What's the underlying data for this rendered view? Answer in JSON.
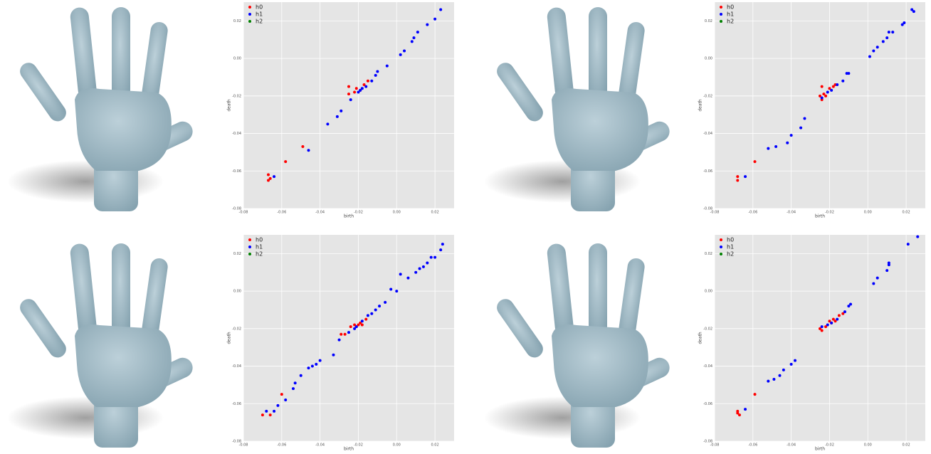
{
  "chart_data": [
    {
      "type": "scatter",
      "x_label": "birth",
      "y_label": "death",
      "xlim": [
        -0.08,
        0.03
      ],
      "ylim": [
        -0.08,
        0.03
      ],
      "xticks": [
        -0.08,
        -0.06,
        -0.04,
        -0.02,
        {
          "value": 0,
          "label": "0.00"
        },
        0.02
      ],
      "yticks": [
        -0.08,
        -0.06,
        -0.04,
        -0.02,
        {
          "value": 0,
          "label": "0.00"
        },
        0.02
      ],
      "grid": true,
      "legend": "upper left",
      "series": [
        {
          "name": "h0",
          "color": "#ff0000",
          "x": [
            -0.067,
            -0.066,
            -0.067,
            -0.058,
            -0.049,
            -0.025,
            -0.025,
            -0.022,
            -0.021,
            -0.019,
            -0.017,
            -0.015
          ],
          "values": [
            -0.062,
            -0.064,
            -0.065,
            -0.055,
            -0.047,
            -0.015,
            -0.019,
            -0.018,
            -0.016,
            -0.017,
            -0.014,
            -0.012
          ]
        },
        {
          "name": "h1",
          "color": "#0000ff",
          "x": [
            -0.064,
            -0.046,
            -0.036,
            -0.031,
            -0.029,
            -0.024,
            -0.02,
            -0.019,
            -0.018,
            -0.016,
            -0.013,
            -0.011,
            -0.01,
            -0.005,
            0.002,
            0.004,
            0.008,
            0.009,
            0.011,
            0.016,
            0.02,
            0.023
          ],
          "values": [
            -0.063,
            -0.049,
            -0.035,
            -0.031,
            -0.028,
            -0.022,
            -0.018,
            -0.017,
            -0.016,
            -0.015,
            -0.012,
            -0.009,
            -0.007,
            -0.004,
            0.002,
            0.004,
            0.009,
            0.011,
            0.014,
            0.018,
            0.021,
            0.026
          ]
        },
        {
          "name": "h2",
          "color": "#008000",
          "x": [],
          "values": []
        }
      ]
    },
    {
      "type": "scatter",
      "x_label": "birth",
      "y_label": "death",
      "xlim": [
        -0.08,
        0.03
      ],
      "ylim": [
        -0.08,
        0.03
      ],
      "xticks": [
        -0.08,
        -0.06,
        -0.04,
        -0.02,
        {
          "value": 0,
          "label": "0.00"
        },
        0.02
      ],
      "yticks": [
        -0.08,
        -0.06,
        -0.04,
        -0.02,
        {
          "value": 0,
          "label": "0.00"
        },
        0.02
      ],
      "grid": true,
      "legend": "upper left",
      "series": [
        {
          "name": "h0",
          "color": "#ff0000",
          "x": [
            -0.068,
            -0.068,
            -0.059,
            -0.025,
            -0.024,
            -0.023,
            -0.022,
            -0.02,
            -0.018,
            -0.017,
            -0.024
          ],
          "values": [
            -0.063,
            -0.065,
            -0.055,
            -0.02,
            -0.022,
            -0.019,
            -0.02,
            -0.016,
            -0.015,
            -0.014,
            -0.015
          ]
        },
        {
          "name": "h1",
          "color": "#0000ff",
          "x": [
            -0.064,
            -0.052,
            -0.048,
            -0.042,
            -0.04,
            -0.035,
            -0.033,
            -0.024,
            -0.021,
            -0.019,
            -0.016,
            -0.013,
            -0.011,
            -0.01,
            0.001,
            0.003,
            0.005,
            0.008,
            0.01,
            0.011,
            0.013,
            0.018,
            0.019,
            0.023,
            0.024
          ],
          "values": [
            -0.063,
            -0.048,
            -0.047,
            -0.045,
            -0.041,
            -0.037,
            -0.032,
            -0.021,
            -0.018,
            -0.017,
            -0.014,
            -0.012,
            -0.008,
            -0.008,
            0.001,
            0.004,
            0.006,
            0.009,
            0.011,
            0.014,
            0.014,
            0.018,
            0.019,
            0.026,
            0.025
          ]
        },
        {
          "name": "h2",
          "color": "#008000",
          "x": [],
          "values": []
        }
      ]
    },
    {
      "type": "scatter",
      "x_label": "birth",
      "y_label": "death",
      "xlim": [
        -0.08,
        0.03
      ],
      "ylim": [
        -0.08,
        0.03
      ],
      "xticks": [
        -0.08,
        -0.06,
        -0.04,
        -0.02,
        {
          "value": 0,
          "label": "0.00"
        },
        0.02
      ],
      "yticks": [
        -0.08,
        -0.06,
        -0.04,
        -0.02,
        {
          "value": 0,
          "label": "0.00"
        },
        0.02
      ],
      "grid": true,
      "legend": "upper left",
      "series": [
        {
          "name": "h0",
          "color": "#ff0000",
          "x": [
            -0.07,
            -0.066,
            -0.06,
            -0.029,
            -0.027,
            -0.024,
            -0.022,
            -0.021,
            -0.02,
            -0.019,
            -0.018,
            -0.016
          ],
          "values": [
            -0.066,
            -0.066,
            -0.055,
            -0.023,
            -0.023,
            -0.019,
            -0.018,
            -0.019,
            -0.018,
            -0.017,
            -0.018,
            -0.015
          ]
        },
        {
          "name": "h1",
          "color": "#0000ff",
          "x": [
            -0.068,
            -0.064,
            -0.062,
            -0.058,
            -0.054,
            -0.053,
            -0.05,
            -0.046,
            -0.044,
            -0.042,
            -0.04,
            -0.033,
            -0.03,
            -0.025,
            -0.022,
            -0.021,
            -0.018,
            -0.015,
            -0.013,
            -0.011,
            -0.009,
            -0.006,
            -0.003,
            0.0,
            0.002,
            0.006,
            0.01,
            0.012,
            0.014,
            0.016,
            0.018,
            0.02,
            0.023,
            0.024
          ],
          "values": [
            -0.064,
            -0.064,
            -0.061,
            -0.058,
            -0.052,
            -0.049,
            -0.045,
            -0.041,
            -0.04,
            -0.039,
            -0.037,
            -0.034,
            -0.026,
            -0.022,
            -0.02,
            -0.019,
            -0.016,
            -0.013,
            -0.012,
            -0.01,
            -0.008,
            -0.006,
            0.001,
            0.0,
            0.009,
            0.007,
            0.01,
            0.012,
            0.013,
            0.015,
            0.018,
            0.018,
            0.022,
            0.025
          ]
        },
        {
          "name": "h2",
          "color": "#008000",
          "x": [],
          "values": []
        }
      ]
    },
    {
      "type": "scatter",
      "x_label": "birth",
      "y_label": "death",
      "xlim": [
        -0.08,
        0.03
      ],
      "ylim": [
        -0.08,
        0.03
      ],
      "xticks": [
        -0.08,
        -0.06,
        -0.04,
        -0.02,
        {
          "value": 0,
          "label": "0.00"
        },
        0.02
      ],
      "yticks": [
        -0.08,
        -0.06,
        -0.04,
        -0.02,
        {
          "value": 0,
          "label": "0.00"
        },
        0.02
      ],
      "grid": true,
      "legend": "upper left",
      "series": [
        {
          "name": "h0",
          "color": "#ff0000",
          "x": [
            -0.068,
            -0.068,
            -0.067,
            -0.059,
            -0.025,
            -0.024,
            -0.022,
            -0.02,
            -0.019,
            -0.018,
            -0.017,
            -0.015,
            -0.013
          ],
          "values": [
            -0.064,
            -0.065,
            -0.066,
            -0.055,
            -0.02,
            -0.021,
            -0.019,
            -0.016,
            -0.017,
            -0.015,
            -0.016,
            -0.013,
            -0.012
          ]
        },
        {
          "name": "h1",
          "color": "#0000ff",
          "x": [
            -0.064,
            -0.052,
            -0.049,
            -0.046,
            -0.044,
            -0.04,
            -0.038,
            -0.024,
            -0.021,
            -0.019,
            -0.016,
            -0.012,
            -0.01,
            -0.009,
            0.003,
            0.005,
            0.01,
            0.011,
            0.011,
            0.021,
            0.026
          ],
          "values": [
            -0.063,
            -0.048,
            -0.047,
            -0.045,
            -0.042,
            -0.039,
            -0.037,
            -0.019,
            -0.018,
            -0.017,
            -0.015,
            -0.011,
            -0.008,
            -0.007,
            0.004,
            0.007,
            0.011,
            0.014,
            0.015,
            0.025,
            0.029
          ]
        },
        {
          "name": "h2",
          "color": "#008000",
          "x": [],
          "values": []
        }
      ]
    }
  ]
}
